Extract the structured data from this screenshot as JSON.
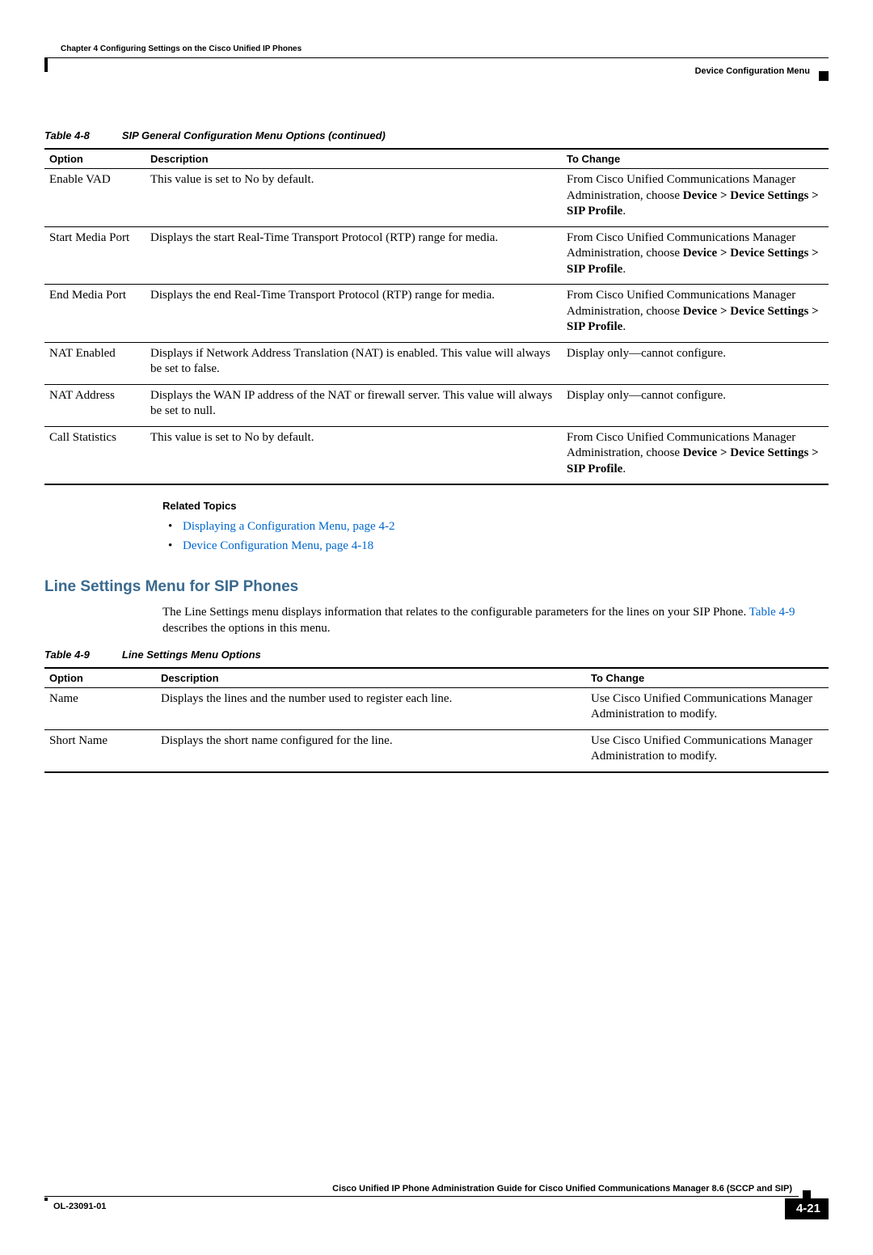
{
  "header": {
    "chapter_label": "Chapter 4      Configuring Settings on the Cisco Unified IP Phones",
    "breadcrumb": "Device Configuration Menu"
  },
  "table1": {
    "caption_tag": "Table 4-8",
    "caption_title": "SIP General Configuration Menu Options (continued)",
    "headers": {
      "c1": "Option",
      "c2": "Description",
      "c3": "To Change"
    },
    "rows": [
      {
        "option": "Enable VAD",
        "desc": "This value is set to No by default.",
        "change_pre": "From Cisco Unified Communications Manager Administration, choose ",
        "change_bold": "Device > Device Settings > SIP Profile",
        "change_post": "."
      },
      {
        "option": "Start Media Port",
        "desc": "Displays the start Real-Time Transport Protocol (RTP) range for media.",
        "change_pre": "From Cisco Unified Communications Manager Administration, choose ",
        "change_bold": "Device > Device Settings > SIP Profile",
        "change_post": "."
      },
      {
        "option": "End Media Port",
        "desc": "Displays the end Real-Time Transport Protocol (RTP) range for media.",
        "change_pre": "From Cisco Unified Communications Manager Administration, choose ",
        "change_bold": "Device > Device Settings > SIP Profile",
        "change_post": "."
      },
      {
        "option": "NAT Enabled",
        "desc": "Displays if Network Address Translation (NAT) is enabled. This value will always be set to false.",
        "change_plain": "Display only—cannot configure."
      },
      {
        "option": "NAT Address",
        "desc": "Displays the WAN IP address of the NAT or firewall server. This value will always be set to null.",
        "change_plain": "Display only—cannot configure."
      },
      {
        "option": "Call Statistics",
        "desc": "This value is set to No by default.",
        "change_pre": "From Cisco Unified Communications Manager Administration, choose ",
        "change_bold": "Device > Device Settings > SIP Profile",
        "change_post": "."
      }
    ]
  },
  "related": {
    "heading": "Related Topics",
    "items": [
      "Displaying a Configuration Menu, page 4-2",
      "Device Configuration Menu, page 4-18"
    ]
  },
  "section": {
    "heading": "Line Settings Menu for SIP Phones",
    "body_pre": "The Line Settings menu displays information that relates to the configurable parameters for the lines on your SIP Phone. ",
    "body_link": "Table 4-9",
    "body_post": " describes the options in this menu."
  },
  "table2": {
    "caption_tag": "Table 4-9",
    "caption_title": "Line Settings Menu Options",
    "headers": {
      "c1": "Option",
      "c2": "Description",
      "c3": "To Change"
    },
    "rows": [
      {
        "option": "Name",
        "desc": "Displays the lines and the number used to register each line.",
        "change": "Use Cisco Unified Communications Manager Administration to modify."
      },
      {
        "option": "Short Name",
        "desc": "Displays the short name configured for the line.",
        "change": "Use Cisco Unified Communications Manager Administration to modify."
      }
    ]
  },
  "footer": {
    "guide_title": "Cisco Unified IP Phone Administration Guide for Cisco Unified Communications Manager 8.6 (SCCP and SIP)",
    "doc_id": "OL-23091-01",
    "page_num": "4-21"
  },
  "colors": {
    "link": "#0066cc",
    "section_heading": "#3a6a8f",
    "text": "#000000",
    "bg": "#ffffff"
  }
}
